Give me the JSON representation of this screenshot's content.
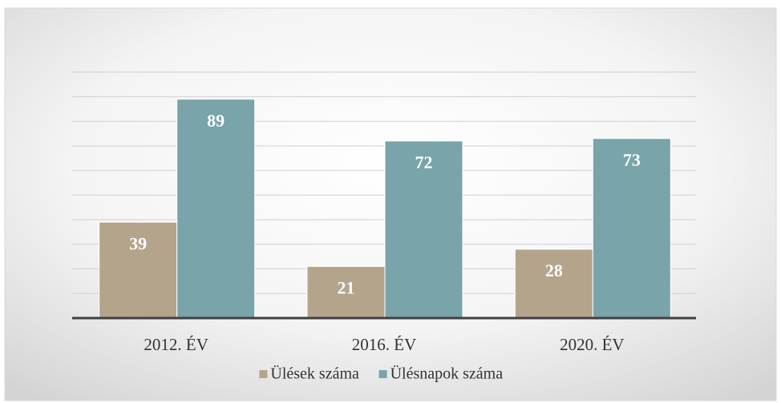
{
  "chart_data": {
    "type": "bar",
    "categories": [
      "2012. ÉV",
      "2016. ÉV",
      "2020. ÉV"
    ],
    "series": [
      {
        "name": "Ülések száma",
        "color": "#b3a48b",
        "values": [
          39,
          21,
          28
        ]
      },
      {
        "name": "Ülésnapok száma",
        "color": "#78a4aa",
        "values": [
          89,
          72,
          73
        ]
      }
    ],
    "ylim": [
      0,
      100
    ],
    "yticks": [
      0,
      10,
      20,
      30,
      40,
      50,
      60,
      70,
      80,
      90,
      100
    ],
    "grid": true,
    "legend": "bottom"
  }
}
